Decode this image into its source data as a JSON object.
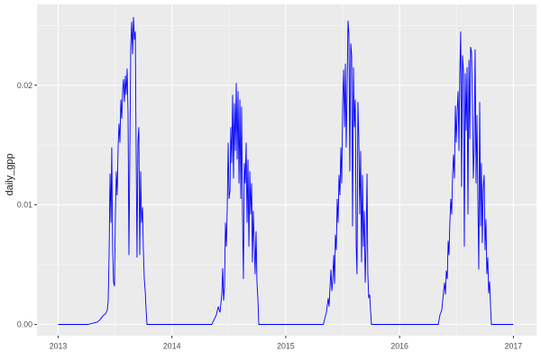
{
  "figure": {
    "background": "#FFFFFF",
    "panel_background": "#EBEBEB",
    "grid_major_color": "#FFFFFF",
    "grid_minor_color": "#FFFFFF",
    "axis_text_color": "#4D4D4D",
    "axis_title_color": "#1A1A1A",
    "tick_mark_color": "#333333"
  },
  "chart_data": {
    "type": "line",
    "title": "",
    "xlabel": "",
    "ylabel": "daily_gpp",
    "series_name": "daily_gpp",
    "line_color": "#0000FF",
    "grid": true,
    "legend": false,
    "x_ticks": [
      2013,
      2014,
      2015,
      2016,
      2017
    ],
    "x_tick_labels": [
      "2013",
      "2014",
      "2015",
      "2016",
      "2017"
    ],
    "x_minor_ticks": [
      2013.5,
      2014.5,
      2015.5,
      2016.5
    ],
    "y_ticks": [
      0,
      0.01,
      0.02
    ],
    "y_tick_labels": [
      "0.00",
      "0.01",
      "0.02"
    ],
    "y_minor_ticks": [
      0.005,
      0.015,
      0.025
    ],
    "xlim": [
      2012.814,
      2017.203
    ],
    "ylim": [
      -0.00094,
      0.02675
    ],
    "points": [
      [
        2013.0,
        0
      ],
      [
        2013.09,
        0
      ],
      [
        2013.17,
        0
      ],
      [
        2013.26,
        0
      ],
      [
        2013.345,
        0.0002
      ],
      [
        2013.368,
        0.0004
      ],
      [
        2013.392,
        0.0007
      ],
      [
        2013.416,
        0.0009
      ],
      [
        2013.432,
        0.0012
      ],
      [
        2013.44,
        0.002
      ],
      [
        2013.448,
        0.006
      ],
      [
        2013.456,
        0.0126
      ],
      [
        2013.464,
        0.0085
      ],
      [
        2013.471,
        0.0148
      ],
      [
        2013.479,
        0.0062
      ],
      [
        2013.487,
        0.0035
      ],
      [
        2013.495,
        0.0032
      ],
      [
        2013.503,
        0.009
      ],
      [
        2013.511,
        0.0128
      ],
      [
        2013.519,
        0.0108
      ],
      [
        2013.527,
        0.0148
      ],
      [
        2013.535,
        0.0168
      ],
      [
        2013.543,
        0.0152
      ],
      [
        2013.551,
        0.0188
      ],
      [
        2013.559,
        0.0172
      ],
      [
        2013.567,
        0.0196
      ],
      [
        2013.574,
        0.0205
      ],
      [
        2013.582,
        0.0186
      ],
      [
        2013.59,
        0.0208
      ],
      [
        2013.598,
        0.0192
      ],
      [
        2013.606,
        0.0214
      ],
      [
        2013.614,
        0.0178
      ],
      [
        2013.622,
        0.0058
      ],
      [
        2013.63,
        0.0142
      ],
      [
        2013.638,
        0.0232
      ],
      [
        2013.646,
        0.0253
      ],
      [
        2013.654,
        0.0226
      ],
      [
        2013.662,
        0.0257
      ],
      [
        2013.67,
        0.0238
      ],
      [
        2013.678,
        0.0245
      ],
      [
        2013.685,
        0.0148
      ],
      [
        2013.693,
        0.0056
      ],
      [
        2013.701,
        0.0152
      ],
      [
        2013.709,
        0.0165
      ],
      [
        2013.717,
        0.0058
      ],
      [
        2013.725,
        0.0128
      ],
      [
        2013.733,
        0.0085
      ],
      [
        2013.741,
        0.0098
      ],
      [
        2013.749,
        0.0062
      ],
      [
        2013.757,
        0.0038
      ],
      [
        2013.765,
        0.0028
      ],
      [
        2013.773,
        0.0012
      ],
      [
        2013.781,
        0
      ],
      [
        2013.85,
        0
      ],
      [
        2013.95,
        0
      ],
      [
        2014.05,
        0
      ],
      [
        2014.15,
        0
      ],
      [
        2014.25,
        0
      ],
      [
        2014.35,
        0
      ],
      [
        2014.39,
        0.0008
      ],
      [
        2014.407,
        0.0015
      ],
      [
        2014.422,
        0.001
      ],
      [
        2014.438,
        0.0025
      ],
      [
        2014.446,
        0.0047
      ],
      [
        2014.454,
        0.002
      ],
      [
        2014.462,
        0.0032
      ],
      [
        2014.47,
        0.0085
      ],
      [
        2014.478,
        0.0065
      ],
      [
        2014.486,
        0.0098
      ],
      [
        2014.494,
        0.0152
      ],
      [
        2014.502,
        0.0105
      ],
      [
        2014.51,
        0.0112
      ],
      [
        2014.517,
        0.0165
      ],
      [
        2014.525,
        0.0135
      ],
      [
        2014.533,
        0.0192
      ],
      [
        2014.541,
        0.0122
      ],
      [
        2014.549,
        0.0185
      ],
      [
        2014.557,
        0.0145
      ],
      [
        2014.565,
        0.0202
      ],
      [
        2014.573,
        0.0138
      ],
      [
        2014.581,
        0.0195
      ],
      [
        2014.589,
        0.0118
      ],
      [
        2014.597,
        0.0188
      ],
      [
        2014.605,
        0.0105
      ],
      [
        2014.612,
        0.0182
      ],
      [
        2014.62,
        0.0092
      ],
      [
        2014.628,
        0.0038
      ],
      [
        2014.636,
        0.0135
      ],
      [
        2014.644,
        0.0118
      ],
      [
        2014.652,
        0.0152
      ],
      [
        2014.66,
        0.0085
      ],
      [
        2014.668,
        0.0138
      ],
      [
        2014.676,
        0.0065
      ],
      [
        2014.684,
        0.0128
      ],
      [
        2014.692,
        0.0092
      ],
      [
        2014.7,
        0.0118
      ],
      [
        2014.707,
        0.0052
      ],
      [
        2014.715,
        0.0095
      ],
      [
        2014.723,
        0.0068
      ],
      [
        2014.731,
        0.0042
      ],
      [
        2014.739,
        0.0078
      ],
      [
        2014.747,
        0.0035
      ],
      [
        2014.755,
        0.0022
      ],
      [
        2014.763,
        0
      ],
      [
        2014.85,
        0
      ],
      [
        2014.95,
        0
      ],
      [
        2015.05,
        0
      ],
      [
        2015.15,
        0
      ],
      [
        2015.25,
        0
      ],
      [
        2015.33,
        0
      ],
      [
        2015.357,
        0.001
      ],
      [
        2015.373,
        0.0022
      ],
      [
        2015.381,
        0.0015
      ],
      [
        2015.389,
        0.0032
      ],
      [
        2015.397,
        0.0046
      ],
      [
        2015.405,
        0.0028
      ],
      [
        2015.413,
        0.0038
      ],
      [
        2015.421,
        0.0058
      ],
      [
        2015.429,
        0.0034
      ],
      [
        2015.436,
        0.0075
      ],
      [
        2015.444,
        0.0062
      ],
      [
        2015.452,
        0.0105
      ],
      [
        2015.46,
        0.0085
      ],
      [
        2015.468,
        0.0125
      ],
      [
        2015.476,
        0.0108
      ],
      [
        2015.484,
        0.0148
      ],
      [
        2015.492,
        0.0118
      ],
      [
        2015.5,
        0.0185
      ],
      [
        2015.508,
        0.0213
      ],
      [
        2015.516,
        0.0165
      ],
      [
        2015.524,
        0.0218
      ],
      [
        2015.531,
        0.0148
      ],
      [
        2015.539,
        0.0197
      ],
      [
        2015.547,
        0.0254
      ],
      [
        2015.555,
        0.0242
      ],
      [
        2015.563,
        0.0128
      ],
      [
        2015.571,
        0.0235
      ],
      [
        2015.579,
        0.0225
      ],
      [
        2015.587,
        0.0082
      ],
      [
        2015.595,
        0.0215
      ],
      [
        2015.603,
        0.0165
      ],
      [
        2015.611,
        0.0188
      ],
      [
        2015.619,
        0.0065
      ],
      [
        2015.626,
        0.0042
      ],
      [
        2015.634,
        0.0186
      ],
      [
        2015.642,
        0.0155
      ],
      [
        2015.65,
        0.0092
      ],
      [
        2015.658,
        0.0145
      ],
      [
        2015.666,
        0.0052
      ],
      [
        2015.674,
        0.0125
      ],
      [
        2015.682,
        0.0065
      ],
      [
        2015.69,
        0.0095
      ],
      [
        2015.698,
        0.0035
      ],
      [
        2015.706,
        0.0068
      ],
      [
        2015.714,
        0.0126
      ],
      [
        2015.721,
        0.0042
      ],
      [
        2015.729,
        0.0022
      ],
      [
        2015.737,
        0.0025
      ],
      [
        2015.745,
        0.0012
      ],
      [
        2015.753,
        0
      ],
      [
        2015.85,
        0
      ],
      [
        2015.95,
        0
      ],
      [
        2016.05,
        0
      ],
      [
        2016.15,
        0
      ],
      [
        2016.25,
        0
      ],
      [
        2016.34,
        0
      ],
      [
        2016.355,
        0.0008
      ],
      [
        2016.371,
        0.0012
      ],
      [
        2016.387,
        0.0028
      ],
      [
        2016.395,
        0.0035
      ],
      [
        2016.403,
        0.0025
      ],
      [
        2016.411,
        0.0045
      ],
      [
        2016.419,
        0.0038
      ],
      [
        2016.427,
        0.007
      ],
      [
        2016.434,
        0.0058
      ],
      [
        2016.442,
        0.0085
      ],
      [
        2016.45,
        0.0105
      ],
      [
        2016.458,
        0.0092
      ],
      [
        2016.466,
        0.0125
      ],
      [
        2016.474,
        0.0142
      ],
      [
        2016.482,
        0.0122
      ],
      [
        2016.49,
        0.0183
      ],
      [
        2016.498,
        0.0152
      ],
      [
        2016.506,
        0.0178
      ],
      [
        2016.514,
        0.0195
      ],
      [
        2016.522,
        0.0145
      ],
      [
        2016.529,
        0.0208
      ],
      [
        2016.537,
        0.0245
      ],
      [
        2016.545,
        0.0115
      ],
      [
        2016.553,
        0.0225
      ],
      [
        2016.561,
        0.0212
      ],
      [
        2016.569,
        0.0065
      ],
      [
        2016.577,
        0.021
      ],
      [
        2016.585,
        0.0162
      ],
      [
        2016.593,
        0.0215
      ],
      [
        2016.601,
        0.0092
      ],
      [
        2016.609,
        0.0221
      ],
      [
        2016.617,
        0.0155
      ],
      [
        2016.624,
        0.0232
      ],
      [
        2016.632,
        0.0228
      ],
      [
        2016.64,
        0.0185
      ],
      [
        2016.648,
        0.0122
      ],
      [
        2016.656,
        0.0148
      ],
      [
        2016.664,
        0.023
      ],
      [
        2016.672,
        0.0118
      ],
      [
        2016.68,
        0.0175
      ],
      [
        2016.688,
        0.0105
      ],
      [
        2016.696,
        0.0046
      ],
      [
        2016.704,
        0.0186
      ],
      [
        2016.712,
        0.0082
      ],
      [
        2016.719,
        0.0135
      ],
      [
        2016.727,
        0.0068
      ],
      [
        2016.735,
        0.0115
      ],
      [
        2016.743,
        0.0125
      ],
      [
        2016.751,
        0.0062
      ],
      [
        2016.759,
        0.0088
      ],
      [
        2016.767,
        0.0042
      ],
      [
        2016.775,
        0.0056
      ],
      [
        2016.783,
        0.0026
      ],
      [
        2016.791,
        0.0036
      ],
      [
        2016.799,
        0.0016
      ],
      [
        2016.807,
        0
      ],
      [
        2016.87,
        0
      ],
      [
        2016.94,
        0
      ],
      [
        2017.0,
        0
      ]
    ]
  }
}
